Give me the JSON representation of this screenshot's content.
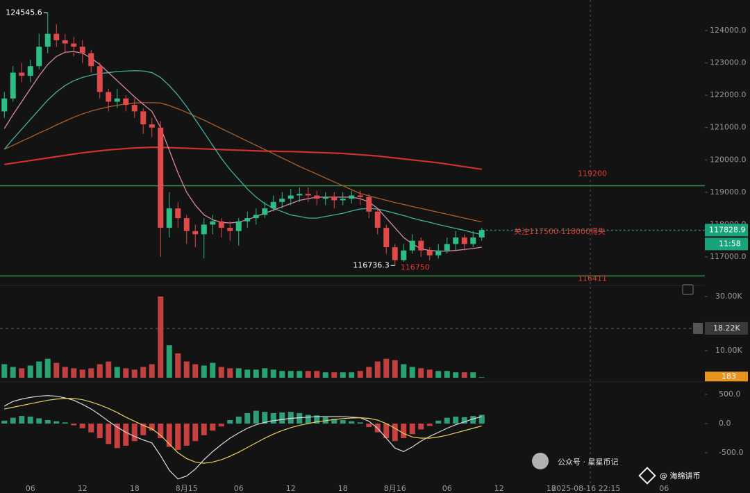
{
  "chart_data": {
    "type": "candlestick",
    "categories": [
      null,
      null,
      null,
      "06",
      null,
      null,
      null,
      null,
      null,
      "12",
      null,
      null,
      null,
      null,
      null,
      "18",
      null,
      null,
      null,
      null,
      null,
      "8月15",
      null,
      null,
      null,
      null,
      null,
      "06",
      null,
      null,
      null,
      null,
      null,
      "12",
      null,
      null,
      null,
      null,
      null,
      "18",
      null,
      null,
      null,
      null,
      null,
      "8月16",
      null,
      null,
      null,
      null,
      null,
      "06",
      null,
      null,
      null,
      null,
      null,
      "12",
      null,
      null,
      null,
      null,
      null,
      "18",
      null,
      null,
      null,
      "2025-08-16 22:15",
      null,
      null,
      null,
      null,
      null,
      null,
      null,
      null,
      "06",
      null,
      null,
      null,
      null
    ],
    "open": [
      121500,
      121900,
      122700,
      122600,
      122900,
      123500,
      123900,
      123700,
      123600,
      123500,
      123300,
      122900,
      122100,
      121800,
      121900,
      121700,
      121500,
      121100,
      121000,
      117900,
      118500,
      118200,
      117800,
      117700,
      118000,
      118100,
      117900,
      117800,
      118100,
      118200,
      118300,
      118500,
      118700,
      118800,
      118900,
      118950,
      118900,
      118800,
      118850,
      118750,
      118800,
      118900,
      118850,
      118400,
      117900,
      117300,
      116900,
      117200,
      117500,
      117200,
      117050,
      117200,
      117400,
      117600,
      117400,
      117600,
      null,
      null,
      null,
      null,
      null,
      null,
      null,
      null,
      null,
      null,
      null,
      null,
      null,
      null,
      null,
      null,
      null,
      null,
      null,
      null,
      null,
      null,
      null,
      null,
      null
    ],
    "high": [
      122100,
      122900,
      123000,
      123100,
      123900,
      124545.6,
      124200,
      123900,
      123800,
      123700,
      123400,
      123000,
      122200,
      122200,
      122000,
      121900,
      121600,
      121300,
      121200,
      119000,
      118700,
      118300,
      118000,
      118200,
      118300,
      118200,
      118100,
      118200,
      118400,
      118500,
      118700,
      118900,
      119000,
      119100,
      119150,
      119150,
      119050,
      119000,
      119000,
      119000,
      119050,
      119050,
      118950,
      118500,
      118000,
      117400,
      117400,
      117700,
      117600,
      117300,
      117400,
      117600,
      117800,
      117700,
      117800,
      117900,
      null,
      null,
      null,
      null,
      null,
      null,
      null,
      null,
      null,
      null,
      null,
      null,
      null,
      null,
      null,
      null,
      null,
      null,
      null,
      null,
      null,
      null,
      null,
      null,
      null
    ],
    "low": [
      121300,
      121800,
      122400,
      122400,
      122800,
      123300,
      123500,
      123300,
      123200,
      123000,
      122700,
      121900,
      121500,
      121600,
      121500,
      121300,
      120800,
      120700,
      117000,
      117600,
      117900,
      117400,
      117300,
      116950,
      117700,
      117600,
      117500,
      117350,
      117900,
      118000,
      118200,
      118400,
      118500,
      118600,
      118700,
      118700,
      118600,
      118600,
      118500,
      118600,
      118650,
      118600,
      118200,
      117700,
      117100,
      116736.3,
      116850,
      117100,
      117000,
      116900,
      116950,
      117100,
      117200,
      117200,
      117300,
      117500,
      null,
      null,
      null,
      null,
      null,
      null,
      null,
      null,
      null,
      null,
      null,
      null,
      null,
      null,
      null,
      null,
      null,
      null,
      null,
      null,
      null,
      null,
      null,
      null,
      null
    ],
    "close": [
      121900,
      122700,
      122600,
      122900,
      123500,
      123900,
      123700,
      123600,
      123500,
      123300,
      122900,
      122100,
      121800,
      121900,
      121700,
      121500,
      121100,
      121000,
      117900,
      118500,
      118200,
      117800,
      117700,
      118000,
      118100,
      117900,
      117800,
      118100,
      118200,
      118300,
      118500,
      118700,
      118800,
      118900,
      118950,
      118900,
      118800,
      118850,
      118750,
      118800,
      118900,
      118850,
      118400,
      117900,
      117300,
      116900,
      117200,
      117500,
      117200,
      117050,
      117200,
      117400,
      117600,
      117400,
      117600,
      117828.9,
      null,
      null,
      null,
      null,
      null,
      null,
      null,
      null,
      null,
      null,
      null,
      null,
      null,
      null,
      null,
      null,
      null,
      null,
      null,
      null,
      null,
      null,
      null,
      null,
      null
    ],
    "up_color": "#2ebd85",
    "down_color": "#e04a4a",
    "countdown": "11:58",
    "ylim": [
      116141,
      124945
    ],
    "yticks": [
      {
        "value": 117000,
        "label": "117000.0"
      },
      {
        "value": 118000,
        "label": "118000.0"
      },
      {
        "value": 119000,
        "label": "119000.0"
      },
      {
        "value": 120000,
        "label": "120000.0"
      },
      {
        "value": 121000,
        "label": "121000.0"
      },
      {
        "value": 122000,
        "label": "122000.0"
      },
      {
        "value": 123000,
        "label": "123000.0"
      },
      {
        "value": 124000,
        "label": "124000.0"
      }
    ],
    "series": [
      {
        "color": "#d32f2f",
        "values": [
          119860,
          119900,
          119940,
          119980,
          120020,
          120060,
          120100,
          120140,
          120180,
          120220,
          120250,
          120280,
          120310,
          120330,
          120350,
          120370,
          120380,
          120390,
          120390,
          120380,
          120370,
          120360,
          120350,
          120340,
          120330,
          120320,
          120310,
          120300,
          120290,
          120280,
          120270,
          120270,
          120260,
          120260,
          120250,
          120240,
          120230,
          120220,
          120210,
          120200,
          120180,
          120160,
          120140,
          120120,
          120090,
          120060,
          120030,
          120000,
          119970,
          119940,
          119910,
          119870,
          119830,
          119790,
          119750,
          119710,
          null,
          null,
          null,
          null,
          null,
          null,
          null,
          null,
          null,
          null,
          null,
          null,
          null,
          null,
          null,
          null,
          null,
          null,
          null,
          null,
          null,
          null,
          null,
          null,
          null
        ]
      },
      {
        "color": "#a8612a",
        "values": [
          120330,
          120450,
          120580,
          120700,
          120830,
          120950,
          121080,
          121200,
          121320,
          121420,
          121510,
          121580,
          121640,
          121690,
          121730,
          121760,
          121770,
          121770,
          121760,
          121680,
          121580,
          121470,
          121350,
          121230,
          121100,
          120970,
          120840,
          120710,
          120580,
          120450,
          120320,
          120190,
          120060,
          119930,
          119800,
          119680,
          119560,
          119440,
          119320,
          119200,
          119080,
          118960,
          118890,
          118820,
          118750,
          118680,
          118620,
          118560,
          118500,
          118440,
          118380,
          118320,
          118260,
          118200,
          118140,
          118080,
          null,
          null,
          null,
          null,
          null,
          null,
          null,
          null,
          null,
          null,
          null,
          null,
          null,
          null,
          null,
          null,
          null,
          null,
          null,
          null,
          null,
          null,
          null,
          null,
          null
        ]
      },
      {
        "color": "#3fb3a0",
        "values": [
          120330,
          120650,
          120950,
          121250,
          121550,
          121850,
          122100,
          122300,
          122450,
          122550,
          122620,
          122670,
          122700,
          122730,
          122750,
          122760,
          122750,
          122700,
          122550,
          122300,
          122000,
          121650,
          121250,
          120850,
          120450,
          120050,
          119700,
          119400,
          119100,
          118850,
          118650,
          118500,
          118400,
          118300,
          118250,
          118200,
          118200,
          118250,
          118300,
          118350,
          118420,
          118480,
          118500,
          118480,
          118420,
          118350,
          118280,
          118200,
          118130,
          118070,
          118000,
          117940,
          117880,
          117820,
          117750,
          117690,
          null,
          null,
          null,
          null,
          null,
          null,
          null,
          null,
          null,
          null,
          null,
          null,
          null,
          null,
          null,
          null,
          null,
          null,
          null,
          null,
          null,
          null,
          null,
          null,
          null
        ]
      },
      {
        "color": "#d98aa8",
        "values": [
          120970,
          121400,
          121800,
          122200,
          122600,
          122950,
          123200,
          123330,
          123350,
          123300,
          123150,
          122950,
          122700,
          122450,
          122200,
          121950,
          121720,
          121500,
          121000,
          120300,
          119600,
          119000,
          118600,
          118300,
          118150,
          118070,
          118050,
          118080,
          118150,
          118250,
          118350,
          118450,
          118550,
          118650,
          118750,
          118800,
          118850,
          118850,
          118850,
          118850,
          118850,
          118800,
          118700,
          118500,
          118200,
          117900,
          117600,
          117400,
          117250,
          117200,
          117180,
          117180,
          117200,
          117230,
          117260,
          117300,
          null,
          null,
          null,
          null,
          null,
          null,
          null,
          null,
          null,
          null,
          null,
          null,
          null,
          null,
          null,
          null,
          null,
          null,
          null,
          null,
          null,
          null,
          null,
          null,
          null
        ]
      }
    ],
    "hlines": [
      {
        "value": 119200,
        "color": "#3d8f4a"
      },
      {
        "value": 116411,
        "color": "#3d8f4a"
      }
    ],
    "annotations": [
      {
        "text": "关注117500-118000得失"
      },
      {
        "value": 116750
      }
    ],
    "annotation_color": "#e53935",
    "volume": {
      "ylim": [
        0,
        33850
      ],
      "yticks": [
        {
          "value": 10000,
          "label": "10.00K"
        },
        {
          "value": 30000,
          "label": "30.00K"
        }
      ],
      "marker": {
        "value": 18220,
        "label": "18.22K"
      },
      "tag_color": "#e8931e",
      "values": [
        5000,
        4000,
        3500,
        4500,
        6000,
        7000,
        5500,
        4000,
        3500,
        3000,
        3500,
        5000,
        6000,
        4000,
        3500,
        3000,
        4000,
        5000,
        30000,
        12000,
        9000,
        6000,
        5000,
        4500,
        5500,
        4000,
        3500,
        3500,
        3000,
        3000,
        3500,
        3000,
        2500,
        2500,
        2500,
        2500,
        2500,
        2000,
        2000,
        2000,
        2000,
        2500,
        4000,
        6000,
        7000,
        6500,
        5000,
        4000,
        3500,
        3000,
        2500,
        2500,
        2000,
        2000,
        2000,
        183,
        null,
        null,
        null,
        null,
        null,
        null,
        null,
        null,
        null,
        null,
        null,
        null,
        null,
        null,
        null,
        null,
        null,
        null,
        null,
        null,
        null,
        null,
        null,
        null,
        null
      ]
    },
    "macd": {
      "ylim": [
        -1071,
        655
      ],
      "yticks": [
        {
          "value": 500,
          "label": "500.0"
        },
        {
          "value": 0,
          "label": "0.0"
        },
        {
          "value": -500,
          "label": "-500.0"
        }
      ],
      "up_color": "#2e9e7a",
      "down_color": "#c94040",
      "histogram": [
        50,
        100,
        130,
        120,
        90,
        60,
        40,
        20,
        -30,
        -80,
        -150,
        -250,
        -350,
        -420,
        -380,
        -300,
        -200,
        -120,
        -250,
        -400,
        -450,
        -380,
        -300,
        -200,
        -120,
        -50,
        60,
        120,
        180,
        220,
        200,
        180,
        190,
        200,
        180,
        150,
        140,
        110,
        80,
        60,
        40,
        20,
        -60,
        -150,
        -250,
        -300,
        -250,
        -180,
        -100,
        -40,
        50,
        100,
        120,
        110,
        130,
        150,
        null,
        null,
        null,
        null,
        null,
        null,
        null,
        null,
        null,
        null,
        null,
        null,
        null,
        null,
        null,
        null,
        null,
        null,
        null,
        null,
        null,
        null,
        null,
        null,
        null
      ],
      "lines": [
        {
          "color": "#dddddd",
          "values": [
            300,
            380,
            420,
            450,
            470,
            480,
            470,
            440,
            400,
            330,
            250,
            150,
            40,
            -60,
            -150,
            -220,
            -280,
            -330,
            -550,
            -800,
            -950,
            -900,
            -780,
            -620,
            -480,
            -360,
            -250,
            -160,
            -80,
            -20,
            20,
            50,
            70,
            90,
            100,
            110,
            120,
            120,
            120,
            120,
            110,
            100,
            40,
            -80,
            -250,
            -420,
            -480,
            -400,
            -300,
            -220,
            -150,
            -80,
            -20,
            30,
            80,
            120,
            null,
            null,
            null,
            null,
            null,
            null,
            null,
            null,
            null,
            null,
            null,
            null,
            null,
            null,
            null,
            null,
            null,
            null,
            null,
            null,
            null,
            null,
            null,
            null,
            null
          ]
        },
        {
          "color": "#e6d15a",
          "values": [
            250,
            280,
            310,
            340,
            370,
            400,
            420,
            430,
            430,
            410,
            370,
            320,
            260,
            190,
            110,
            40,
            -30,
            -90,
            -200,
            -350,
            -500,
            -600,
            -660,
            -680,
            -660,
            -620,
            -560,
            -490,
            -410,
            -330,
            -250,
            -180,
            -120,
            -70,
            -30,
            0,
            30,
            50,
            70,
            85,
            95,
            100,
            90,
            60,
            0,
            -80,
            -170,
            -230,
            -250,
            -250,
            -230,
            -200,
            -160,
            -120,
            -80,
            -40,
            null,
            null,
            null,
            null,
            null,
            null,
            null,
            null,
            null,
            null,
            null,
            null,
            null,
            null,
            null,
            null,
            null,
            null,
            null,
            null,
            null,
            null,
            null,
            null,
            null
          ]
        }
      ]
    }
  },
  "watermark": {
    "channel": "公众号 · 星星币记",
    "author": "@ 海绵讲币"
  }
}
